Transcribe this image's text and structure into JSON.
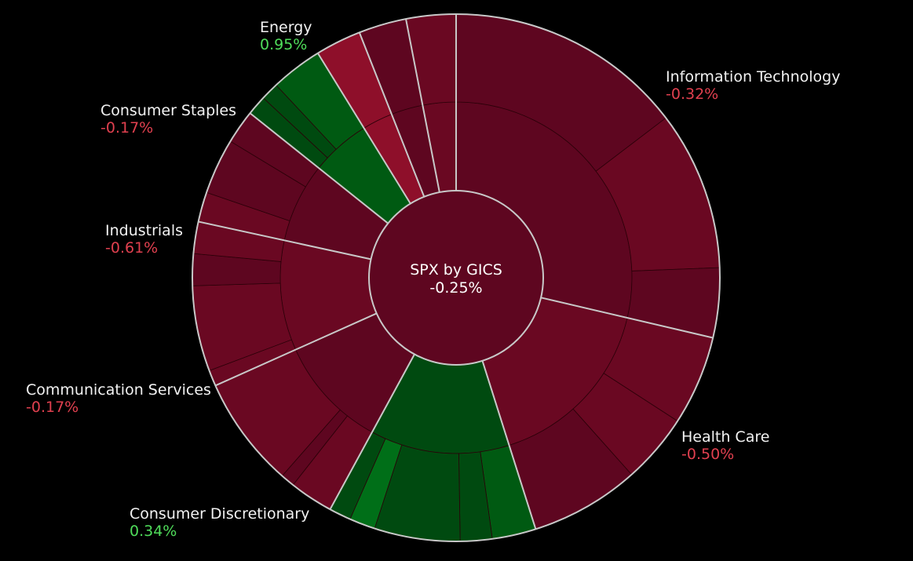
{
  "colors": {
    "background": "#000000",
    "negative": "#e0404f",
    "positive": "#4fdc5a",
    "separator": "#c8c8c8",
    "red_dark": "#5e0620",
    "red_mid": "#6a0822",
    "red_bright": "#8e0f2a",
    "green_dark": "#004a10",
    "green_mid": "#005a12",
    "green_bright": "#006f18"
  },
  "chart_data": {
    "type": "sunburst",
    "center": {
      "name": "SPX by GICS",
      "change": "-0.25%"
    },
    "sectors": [
      {
        "name": "Information Technology",
        "change": "-0.32%",
        "label_pos": "right-top",
        "weight": 23.5,
        "color": "red_dark",
        "children": [
          {
            "w": 12,
            "c": "red_dark"
          },
          {
            "w": 8,
            "c": "red_mid"
          },
          {
            "w": 3.5,
            "c": "red_dark"
          }
        ]
      },
      {
        "name": "Health Care",
        "change": "-0.50%",
        "label_pos": "right-bottom",
        "weight": 13.5,
        "color": "red_mid",
        "children": [
          {
            "w": 4.5,
            "c": "red_mid"
          },
          {
            "w": 3.5,
            "c": "red_mid"
          },
          {
            "w": 5.5,
            "c": "red_dark"
          }
        ]
      },
      {
        "name": "Consumer Discretionary",
        "change": "0.34%",
        "label_pos": "bottom-left",
        "weight": 10.5,
        "color": "green_dark",
        "children": [
          {
            "w": 2.2,
            "c": "green_mid"
          },
          {
            "w": 1.6,
            "c": "green_dark"
          },
          {
            "w": 4.3,
            "c": "green_dark"
          },
          {
            "w": 1.3,
            "c": "green_bright"
          },
          {
            "w": 1.1,
            "c": "green_dark"
          }
        ]
      },
      {
        "name": "Communication Services",
        "change": "-0.17%",
        "label_pos": "left-bottom",
        "weight": 8.5,
        "color": "red_dark",
        "children": [
          {
            "w": 2.2,
            "c": "red_mid"
          },
          {
            "w": 0.7,
            "c": "red_dark"
          },
          {
            "w": 5.6,
            "c": "red_mid"
          }
        ]
      },
      {
        "name": "Industrials",
        "change": "-0.61%",
        "label_pos": "left",
        "weight": 8.3,
        "color": "red_mid",
        "children": [
          {
            "w": 0.8,
            "c": "red_mid"
          },
          {
            "w": 4.3,
            "c": "red_mid"
          },
          {
            "w": 1.6,
            "c": "red_dark"
          },
          {
            "w": 1.6,
            "c": "red_mid"
          }
        ]
      },
      {
        "name": "Consumer Staples",
        "change": "-0.17%",
        "label_pos": "left-top",
        "weight": 6.0,
        "color": "red_dark",
        "children": [
          {
            "w": 1.5,
            "c": "red_mid"
          },
          {
            "w": 2.8,
            "c": "red_dark"
          },
          {
            "w": 1.7,
            "c": "red_dark"
          }
        ]
      },
      {
        "name": "Energy",
        "change": "0.95%",
        "label_pos": "top-left",
        "weight": 4.5,
        "color": "green_mid",
        "children": [
          {
            "w": 1.0,
            "c": "green_dark"
          },
          {
            "w": 0.9,
            "c": "green_dark"
          },
          {
            "w": 2.6,
            "c": "green_mid"
          }
        ]
      },
      {
        "name": "",
        "change": "",
        "label_pos": "",
        "weight": 2.3,
        "color": "red_bright",
        "children": [
          {
            "w": 2.3,
            "c": "red_bright"
          }
        ]
      },
      {
        "name": "",
        "change": "",
        "label_pos": "",
        "weight": 2.4,
        "color": "red_dark",
        "children": [
          {
            "w": 2.4,
            "c": "red_dark"
          }
        ]
      },
      {
        "name": "",
        "change": "",
        "label_pos": "",
        "weight": 2.5,
        "color": "red_mid",
        "children": [
          {
            "w": 2.5,
            "c": "red_mid"
          }
        ]
      }
    ]
  }
}
